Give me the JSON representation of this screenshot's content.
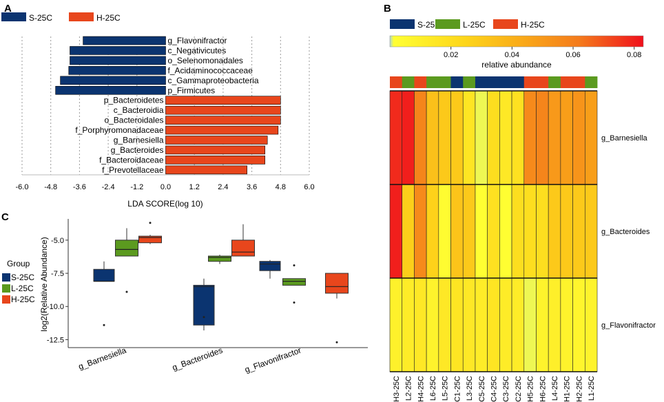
{
  "panels": {
    "a": "A",
    "b": "B",
    "c": "C"
  },
  "colors": {
    "S": "#0b3470",
    "L": "#5b9a1f",
    "H": "#e8461c"
  },
  "chart_data": [
    {
      "id": "lda",
      "type": "bar",
      "orientation": "horizontal",
      "legend": [
        {
          "label": "S-25C",
          "group": "S"
        },
        {
          "label": "H-25C",
          "group": "H"
        }
      ],
      "xlabel": "LDA SCORE(log 10)",
      "xlim": [
        -6.0,
        6.0
      ],
      "xticks": [
        "-6.0",
        "-4.8",
        "-3.6",
        "-2.4",
        "-1.2",
        "0.0",
        "1.2",
        "2.4",
        "3.6",
        "4.8",
        "6.0"
      ],
      "grid": true,
      "bars": [
        {
          "label": "g_Flavonifractor",
          "value": -3.45,
          "group": "S"
        },
        {
          "label": "c_Negativicutes",
          "value": -4.0,
          "group": "S"
        },
        {
          "label": "o_Selenomonadales",
          "value": -4.0,
          "group": "S"
        },
        {
          "label": "f_Acidaminococcaceae",
          "value": -4.05,
          "group": "S"
        },
        {
          "label": "c_Gammaproteobacteria",
          "value": -4.4,
          "group": "S"
        },
        {
          "label": "p_Firmicutes",
          "value": -4.6,
          "group": "S"
        },
        {
          "label": "p_Bacteroidetes",
          "value": 4.8,
          "group": "H"
        },
        {
          "label": "c_Bacteroidia",
          "value": 4.8,
          "group": "H"
        },
        {
          "label": "o_Bacteroidales",
          "value": 4.8,
          "group": "H"
        },
        {
          "label": "f_Porphyromonadaceae",
          "value": 4.7,
          "group": "H"
        },
        {
          "label": "g_Barnesiella",
          "value": 4.25,
          "group": "H"
        },
        {
          "label": "g_Bacteroides",
          "value": 4.15,
          "group": "H"
        },
        {
          "label": "f_Bacteroidaceae",
          "value": 4.15,
          "group": "H"
        },
        {
          "label": "f_Prevotellaceae",
          "value": 3.4,
          "group": "H"
        }
      ]
    },
    {
      "id": "heatmap",
      "type": "heatmap",
      "legend": [
        {
          "label": "S-25C",
          "group": "S"
        },
        {
          "label": "L-25C",
          "group": "L"
        },
        {
          "label": "H-25C",
          "group": "H"
        }
      ],
      "colorbar_label": "relative abundance",
      "colorbar_ticks": [
        "0.02",
        "0.04",
        "0.06",
        "0.08"
      ],
      "colorbar_range": [
        0,
        0.083
      ],
      "columns": [
        "H3-25C",
        "L2-25C",
        "H4-25C",
        "L6-25C",
        "L5-25C",
        "C1-25C",
        "L3-25C",
        "C5-25C",
        "C4-25C",
        "C3-25C",
        "C2-25C",
        "H5-25C",
        "H6-25C",
        "L4-25C",
        "H1-25C",
        "H2-25C",
        "L1-25C"
      ],
      "column_groups": [
        "H",
        "L",
        "H",
        "L",
        "L",
        "S",
        "L",
        "S",
        "S",
        "S",
        "S",
        "H",
        "H",
        "L",
        "H",
        "H",
        "L"
      ],
      "rows": [
        "g_Barnesiella",
        "g_Bacteroides",
        "g_Flavonifractor"
      ],
      "values": [
        [
          0.078,
          0.08,
          0.058,
          0.034,
          0.03,
          0.03,
          0.016,
          0.001,
          0.02,
          0.014,
          0.018,
          0.056,
          0.058,
          0.05,
          0.048,
          0.052,
          0.048
        ],
        [
          0.08,
          0.028,
          0.056,
          0.026,
          0.003,
          0.032,
          0.03,
          0.002,
          0.018,
          0.002,
          0.02,
          0.02,
          0.02,
          0.03,
          0.03,
          0.03,
          0.03
        ],
        [
          0.009,
          0.012,
          0.014,
          0.008,
          0.014,
          0.016,
          0.014,
          0.012,
          0.016,
          0.012,
          0.012,
          0.001,
          0.008,
          0.01,
          0.008,
          0.007,
          0.008
        ]
      ]
    },
    {
      "id": "boxplot",
      "type": "box",
      "legend_title": "Group",
      "legend": [
        {
          "label": "S-25C",
          "group": "S"
        },
        {
          "label": "L-25C",
          "group": "L"
        },
        {
          "label": "H-25C",
          "group": "H"
        }
      ],
      "ylabel": "log2(Relative Abundance)",
      "ylim": [
        -13.1,
        -3.4
      ],
      "yticks": [
        -5.0,
        -7.5,
        -10.0,
        -12.5
      ],
      "ytick_labels": [
        "-5.0",
        "-7.5",
        "-10.0",
        "-12.5"
      ],
      "categories": [
        "g_Barnesiella",
        "g_Bacteroides",
        "g_Flavonifractor"
      ],
      "boxes": [
        {
          "category": 0,
          "group": "S",
          "q1": -8.1,
          "median": -8.1,
          "q3": -7.2,
          "wlo": -8.1,
          "whi": -6.6,
          "outliers": [
            -11.4
          ]
        },
        {
          "category": 0,
          "group": "L",
          "q1": -6.2,
          "median": -5.7,
          "q3": -5.0,
          "wlo": -6.2,
          "whi": -4.1,
          "outliers": [
            -8.9
          ]
        },
        {
          "category": 0,
          "group": "H",
          "q1": -5.2,
          "median": -4.8,
          "q3": -4.7,
          "wlo": -5.3,
          "whi": -4.6,
          "outliers": [
            -3.7
          ]
        },
        {
          "category": 1,
          "group": "S",
          "q1": -11.4,
          "median": -8.5,
          "q3": -8.4,
          "wlo": -11.8,
          "whi": -7.9,
          "outliers": [
            -10.8
          ]
        },
        {
          "category": 1,
          "group": "L",
          "q1": -6.6,
          "median": -6.3,
          "q3": -6.2,
          "wlo": -6.8,
          "whi": -6.1,
          "outliers": []
        },
        {
          "category": 1,
          "group": "H",
          "q1": -6.2,
          "median": -5.9,
          "q3": -5.0,
          "wlo": -6.2,
          "whi": -3.8,
          "outliers": []
        },
        {
          "category": 2,
          "group": "S",
          "q1": -7.3,
          "median": -6.8,
          "q3": -6.6,
          "wlo": -7.9,
          "whi": -6.5,
          "outliers": []
        },
        {
          "category": 2,
          "group": "L",
          "q1": -8.4,
          "median": -8.1,
          "q3": -7.9,
          "wlo": -8.4,
          "whi": -7.9,
          "outliers": [
            -6.9,
            -9.7
          ]
        },
        {
          "category": 2,
          "group": "H",
          "q1": -9.0,
          "median": -8.5,
          "q3": -7.5,
          "wlo": -9.4,
          "whi": -7.5,
          "outliers": [
            -12.7
          ]
        }
      ]
    }
  ]
}
